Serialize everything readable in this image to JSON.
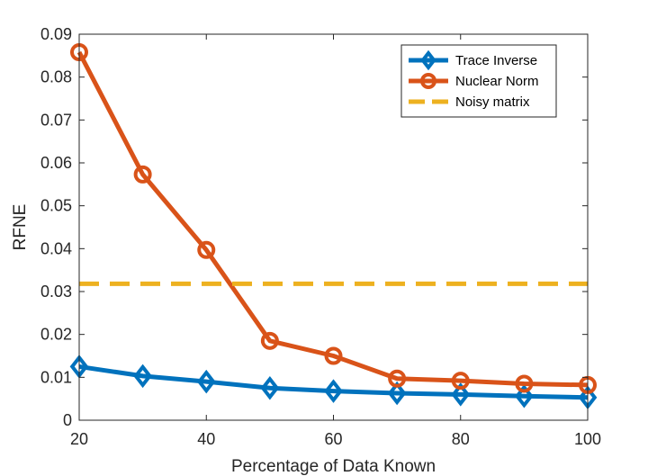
{
  "chart_data": {
    "type": "line",
    "xlabel": "Percentage of Data Known",
    "ylabel": "RFNE",
    "xlim": [
      20,
      100
    ],
    "ylim": [
      0,
      0.09
    ],
    "xticks": [
      20,
      40,
      60,
      80,
      100
    ],
    "xtick_labels": [
      "20",
      "40",
      "60",
      "80",
      "100"
    ],
    "yticks": [
      0,
      0.01,
      0.02,
      0.03,
      0.04,
      0.05,
      0.06,
      0.07,
      0.08,
      0.09
    ],
    "ytick_labels": [
      "0",
      "0.01",
      "0.02",
      "0.03",
      "0.04",
      "0.05",
      "0.06",
      "0.07",
      "0.08",
      "0.09"
    ],
    "grid": false,
    "legend_position": "top-right",
    "x": [
      20,
      30,
      40,
      50,
      60,
      70,
      80,
      90,
      100
    ],
    "series": [
      {
        "name": "Trace Inverse",
        "color": "#0072BD",
        "marker": "diamond",
        "values": [
          0.0125,
          0.0103,
          0.009,
          0.0075,
          0.0068,
          0.0063,
          0.006,
          0.0056,
          0.0053
        ]
      },
      {
        "name": "Nuclear Norm",
        "color": "#D95319",
        "marker": "circle",
        "values": [
          0.0858,
          0.0573,
          0.0397,
          0.0185,
          0.015,
          0.0097,
          0.0092,
          0.0085,
          0.0082
        ]
      },
      {
        "name": "Noisy matrix",
        "color": "#EDB120",
        "style": "dashed",
        "constant": 0.0318
      }
    ]
  }
}
